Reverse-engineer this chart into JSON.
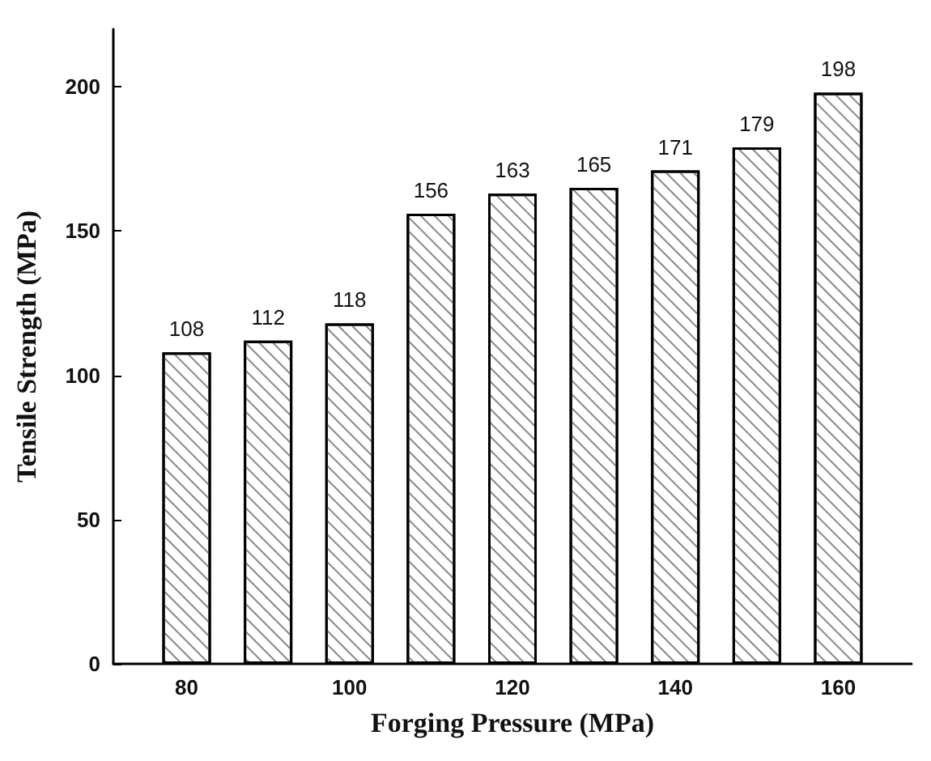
{
  "chart_data": {
    "type": "bar",
    "xlabel": "Forging Pressure (MPa)",
    "ylabel": "Tensile Strength (MPa)",
    "x": [
      80,
      90,
      100,
      110,
      120,
      130,
      140,
      150,
      160
    ],
    "values": [
      108,
      112,
      118,
      156,
      163,
      165,
      171,
      179,
      198
    ],
    "color": "#ffffff",
    "data_labels": true,
    "xlim": [
      71,
      169
    ],
    "xticks": [
      80,
      100,
      120,
      140,
      160
    ],
    "ylim": [
      0,
      220
    ],
    "yticks": [
      0,
      50,
      100,
      150,
      200
    ]
  }
}
